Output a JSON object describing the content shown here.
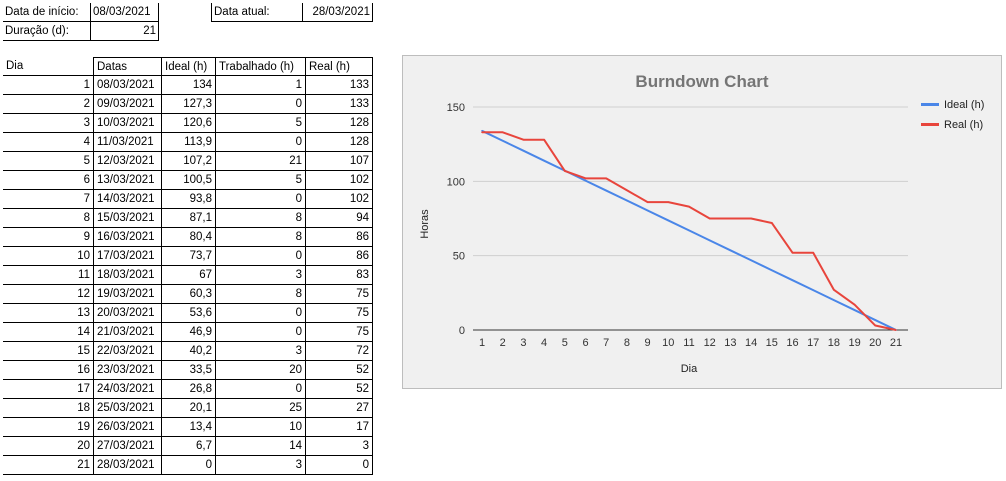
{
  "header": {
    "start_label": "Data de início:",
    "start_value": "08/03/2021",
    "current_label": "Data atual:",
    "current_value": "28/03/2021",
    "duration_label": "Duração (d):",
    "duration_value": "21"
  },
  "table": {
    "columns": [
      "Dia",
      "Datas",
      "Ideal (h)",
      "Trabalhado (h)",
      "Real (h)"
    ],
    "rows": [
      [
        "1",
        "08/03/2021",
        "134",
        "1",
        "133"
      ],
      [
        "2",
        "09/03/2021",
        "127,3",
        "0",
        "133"
      ],
      [
        "3",
        "10/03/2021",
        "120,6",
        "5",
        "128"
      ],
      [
        "4",
        "11/03/2021",
        "113,9",
        "0",
        "128"
      ],
      [
        "5",
        "12/03/2021",
        "107,2",
        "21",
        "107"
      ],
      [
        "6",
        "13/03/2021",
        "100,5",
        "5",
        "102"
      ],
      [
        "7",
        "14/03/2021",
        "93,8",
        "0",
        "102"
      ],
      [
        "8",
        "15/03/2021",
        "87,1",
        "8",
        "94"
      ],
      [
        "9",
        "16/03/2021",
        "80,4",
        "8",
        "86"
      ],
      [
        "10",
        "17/03/2021",
        "73,7",
        "0",
        "86"
      ],
      [
        "11",
        "18/03/2021",
        "67",
        "3",
        "83"
      ],
      [
        "12",
        "19/03/2021",
        "60,3",
        "8",
        "75"
      ],
      [
        "13",
        "20/03/2021",
        "53,6",
        "0",
        "75"
      ],
      [
        "14",
        "21/03/2021",
        "46,9",
        "0",
        "75"
      ],
      [
        "15",
        "22/03/2021",
        "40,2",
        "3",
        "72"
      ],
      [
        "16",
        "23/03/2021",
        "33,5",
        "20",
        "52"
      ],
      [
        "17",
        "24/03/2021",
        "26,8",
        "0",
        "52"
      ],
      [
        "18",
        "25/03/2021",
        "20,1",
        "25",
        "27"
      ],
      [
        "19",
        "26/03/2021",
        "13,4",
        "10",
        "17"
      ],
      [
        "20",
        "27/03/2021",
        "6,7",
        "14",
        "3"
      ],
      [
        "21",
        "28/03/2021",
        "0",
        "3",
        "0"
      ]
    ]
  },
  "chart_data": {
    "type": "line",
    "title": "Burndown Chart",
    "xlabel": "Dia",
    "ylabel": "Horas",
    "x": [
      1,
      2,
      3,
      4,
      5,
      6,
      7,
      8,
      9,
      10,
      11,
      12,
      13,
      14,
      15,
      16,
      17,
      18,
      19,
      20,
      21
    ],
    "ylim": [
      0,
      150
    ],
    "yticks": [
      0,
      50,
      100,
      150
    ],
    "grid": true,
    "legend_position": "right",
    "series": [
      {
        "name": "Ideal (h)",
        "color": "#4a86e8",
        "values": [
          134,
          127.3,
          120.6,
          113.9,
          107.2,
          100.5,
          93.8,
          87.1,
          80.4,
          73.7,
          67,
          60.3,
          53.6,
          46.9,
          40.2,
          33.5,
          26.8,
          20.1,
          13.4,
          6.7,
          0
        ]
      },
      {
        "name": "Real (h)",
        "color": "#e8453c",
        "values": [
          133,
          133,
          128,
          128,
          107,
          102,
          102,
          94,
          86,
          86,
          83,
          75,
          75,
          75,
          72,
          52,
          52,
          27,
          17,
          3,
          0
        ]
      }
    ]
  }
}
